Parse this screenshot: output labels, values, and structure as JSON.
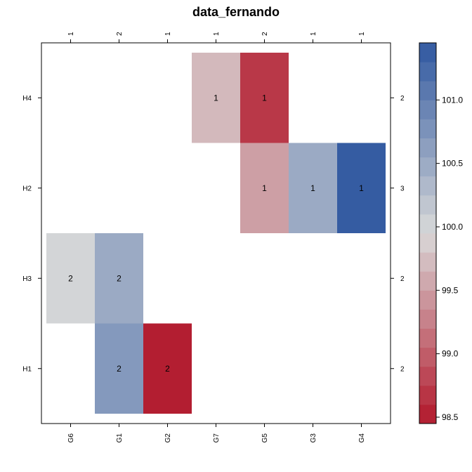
{
  "chart_data": {
    "type": "heatmap",
    "title": "data_fernando",
    "xlabel": "",
    "ylabel": "",
    "columns": [
      "G6",
      "G1",
      "G2",
      "G7",
      "G5",
      "G3",
      "G4"
    ],
    "rows_top_to_bottom": [
      "H4",
      "H2",
      "H3",
      "H1"
    ],
    "column_counts": [
      "1",
      "2",
      "1",
      "1",
      "2",
      "1",
      "1"
    ],
    "row_counts_top_to_bottom": [
      "2",
      "3",
      "2",
      "2"
    ],
    "cells": [
      {
        "row": "H4",
        "col": "G7",
        "value": 99.7,
        "label": "1"
      },
      {
        "row": "H4",
        "col": "G5",
        "value": 98.7,
        "label": "1"
      },
      {
        "row": "H2",
        "col": "G5",
        "value": 99.5,
        "label": "1"
      },
      {
        "row": "H2",
        "col": "G3",
        "value": 100.5,
        "label": "1"
      },
      {
        "row": "H2",
        "col": "G4",
        "value": 101.4,
        "label": "1"
      },
      {
        "row": "H3",
        "col": "G6",
        "value": 100.0,
        "label": "2"
      },
      {
        "row": "H3",
        "col": "G1",
        "value": 100.5,
        "label": "2"
      },
      {
        "row": "H1",
        "col": "G1",
        "value": 100.7,
        "label": "2"
      },
      {
        "row": "H1",
        "col": "G2",
        "value": 98.5,
        "label": "2"
      }
    ],
    "colorbar": {
      "range": [
        98.45,
        101.45
      ],
      "ticks": [
        "98.5",
        "99.0",
        "99.5",
        "100.0",
        "100.5",
        "101.0"
      ],
      "low_color": "#B2182B",
      "mid_color": "#D9D9D9",
      "high_color": "#2F58A0"
    },
    "grid": false,
    "legend": "right"
  }
}
